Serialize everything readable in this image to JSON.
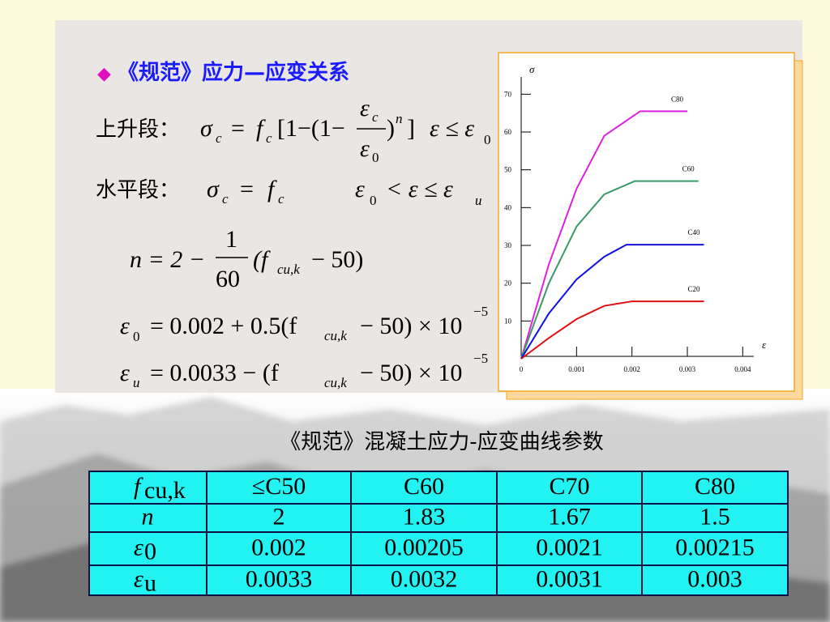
{
  "title": "《规范》应力—应变关系",
  "formulas": {
    "rising": [
      "上升段：",
      "σ",
      "c",
      "=",
      "f",
      "c",
      "[1−(1−",
      "ε",
      "c",
      "ε",
      "0",
      ")",
      "n",
      "]",
      "ε ≤ ε",
      "0"
    ],
    "horizontal": [
      "水平段：",
      "σ",
      "c",
      "=",
      "f",
      "c",
      "ε",
      "0",
      "< ε ≤ ε",
      "u"
    ],
    "n": [
      "n = 2 −",
      "1",
      "60",
      "(f",
      "cu,k",
      "− 50)"
    ],
    "eps0": [
      "ε",
      "0",
      "= 0.002 + 0.5(f",
      "cu,k",
      "− 50) × 10",
      "−5"
    ],
    "epsu": [
      "ε",
      "u",
      "= 0.0033 − (f",
      "cu,k",
      "− 50) × 10",
      "−5"
    ]
  },
  "chart_data": {
    "type": "line",
    "x_label": "ε",
    "y_label": "σ",
    "xlim": [
      0,
      0.0042
    ],
    "ylim": [
      0,
      75
    ],
    "xticks": [
      0,
      0.001,
      0.002,
      0.003,
      0.004
    ],
    "yticks": [
      10,
      20,
      30,
      40,
      50,
      60,
      70
    ],
    "series": [
      {
        "name": "C80",
        "color": "#e020e0",
        "x": [
          0,
          0.0005,
          0.001,
          0.0015,
          0.00215,
          0.003
        ],
        "values": [
          0,
          25,
          45,
          59,
          65.5,
          65.5
        ]
      },
      {
        "name": "C60",
        "color": "#3a9a6a",
        "x": [
          0,
          0.0005,
          0.001,
          0.0015,
          0.00205,
          0.0032
        ],
        "values": [
          0,
          20,
          35,
          43.5,
          47,
          47
        ]
      },
      {
        "name": "C40",
        "color": "#1010e0",
        "x": [
          0,
          0.0005,
          0.001,
          0.0015,
          0.0019,
          0.0033
        ],
        "values": [
          0,
          12,
          21,
          27,
          30.2,
          30.2
        ]
      },
      {
        "name": "C20",
        "color": "#e01010",
        "x": [
          0,
          0.0005,
          0.001,
          0.0015,
          0.002,
          0.0033
        ],
        "values": [
          0,
          5.5,
          10.5,
          14,
          15.2,
          15.2
        ]
      }
    ]
  },
  "table": {
    "caption": "《规范》混凝土应力-应变曲线参数",
    "rows": [
      {
        "symbol": "f",
        "sub": "cu,k",
        "cells": [
          "≤C50",
          "C60",
          "C70",
          "C80"
        ]
      },
      {
        "symbol": "n",
        "cells": [
          "2",
          "1.83",
          "1.67",
          "1.5"
        ]
      },
      {
        "symbol": "ε",
        "sub": "0",
        "cells": [
          "0.002",
          "0.00205",
          "0.0021",
          "0.00215"
        ]
      },
      {
        "symbol": "ε",
        "sub": "u",
        "cells": [
          "0.0033",
          "0.0032",
          "0.0031",
          "0.003"
        ]
      }
    ]
  }
}
